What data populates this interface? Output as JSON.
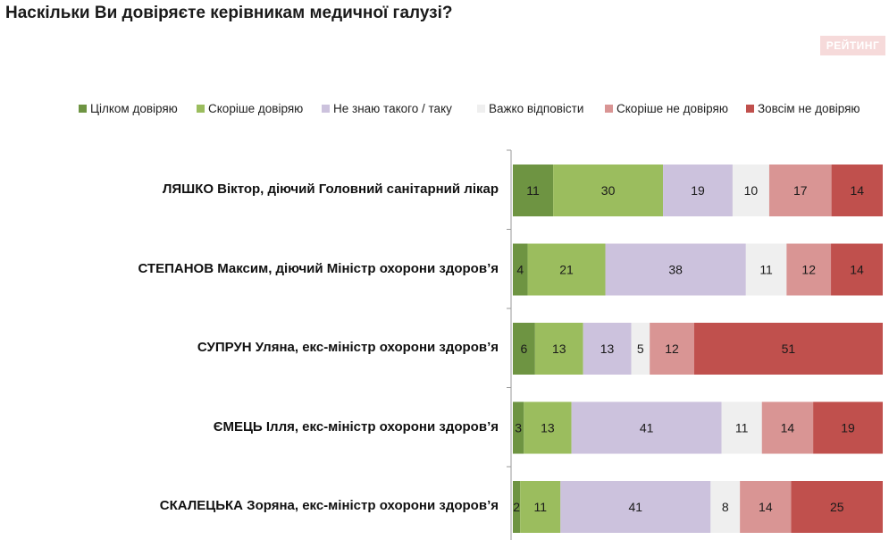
{
  "title": "Наскільки Ви довіряєте керівникам медичної галузі?",
  "brand": "РЕЙТИНГ",
  "colors": {
    "Цілком довіряю": "#6e9442",
    "Скоріше довіряю": "#9bbd5e",
    "Не знаю такого / таку": "#ccc2dd",
    "Важко відповісти": "#efefef",
    "Скоріше не довіряю": "#d99594",
    "Зовсім не довіряю": "#c0504d"
  },
  "chart_data": {
    "type": "bar",
    "orientation": "horizontal-stacked-100",
    "categories": [
      "ЛЯШКО Віктор, діючий Головний санітарний лікар",
      "СТЕПАНОВ Максим, діючий Міністр охорони здоров’я",
      "СУПРУН Уляна, екс-міністр охорони здоров’я",
      "ЄМЕЦЬ Ілля, екс-міністр охорони здоров’я",
      "СКАЛЕЦЬКА Зоряна, екс-міністр охорони здоров’я"
    ],
    "series": [
      {
        "name": "Цілком довіряю",
        "values": [
          11,
          4,
          6,
          3,
          2
        ]
      },
      {
        "name": "Скоріше довіряю",
        "values": [
          30,
          21,
          13,
          13,
          11
        ]
      },
      {
        "name": "Не знаю такого / таку",
        "values": [
          19,
          38,
          13,
          41,
          41
        ]
      },
      {
        "name": "Важко відповісти",
        "values": [
          10,
          11,
          5,
          11,
          8
        ]
      },
      {
        "name": "Скоріше не довіряю",
        "values": [
          17,
          12,
          12,
          14,
          14
        ]
      },
      {
        "name": "Зовсім не довіряю",
        "values": [
          14,
          14,
          51,
          19,
          25
        ]
      }
    ],
    "legend_position": "top",
    "xlim": [
      0,
      100
    ]
  }
}
